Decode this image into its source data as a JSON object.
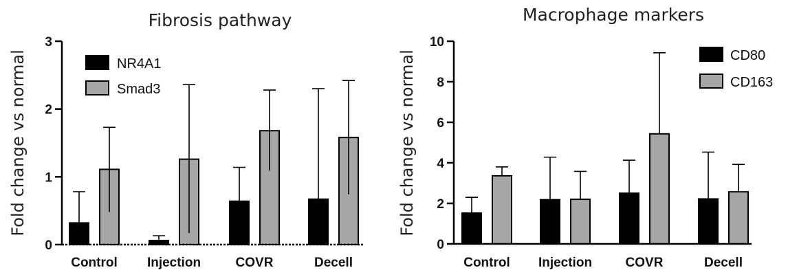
{
  "colors": {
    "series_1": "#000000",
    "series_2": "#a6a6a6",
    "axis": "#000000"
  },
  "chart_data": [
    {
      "type": "bar",
      "title": "Fibrosis pathway",
      "xlabel": "",
      "ylabel": "Fold change vs normal",
      "ylim": [
        0,
        3
      ],
      "yticks": [
        0,
        1,
        2,
        3
      ],
      "ytick_labels": [
        "0",
        "1",
        "2",
        "3"
      ],
      "categories": [
        "Control",
        "Injection",
        "COVR",
        "Decell"
      ],
      "series": [
        {
          "name": "NR4A1",
          "values": [
            0.32,
            0.06,
            0.64,
            0.67
          ],
          "err_upper": [
            0.78,
            0.13,
            1.14,
            2.3
          ],
          "err_lower": [
            0.32,
            0.06,
            0.64,
            0.67
          ]
        },
        {
          "name": "Smad3",
          "values": [
            1.11,
            1.26,
            1.68,
            1.58
          ],
          "err_upper": [
            1.73,
            2.36,
            2.28,
            2.42
          ],
          "err_lower": [
            0.48,
            0.17,
            1.09,
            0.74
          ]
        }
      ],
      "legend_position": "top-left",
      "grid": false
    },
    {
      "type": "bar",
      "title": "Macrophage markers",
      "xlabel": "",
      "ylabel": "Fold change vs normal",
      "ylim": [
        0,
        10
      ],
      "yticks": [
        0,
        2,
        4,
        6,
        8,
        10
      ],
      "ytick_labels": [
        "0",
        "2",
        "4",
        "6",
        "8",
        "10"
      ],
      "categories": [
        "Control",
        "Injection",
        "COVR",
        "Decell"
      ],
      "series": [
        {
          "name": "CD80",
          "values": [
            1.52,
            2.18,
            2.5,
            2.22
          ],
          "err_upper": [
            2.3,
            4.28,
            4.13,
            4.53
          ],
          "err_lower": [
            1.52,
            2.18,
            2.5,
            2.22
          ]
        },
        {
          "name": "CD163",
          "values": [
            3.36,
            2.2,
            5.43,
            2.57
          ],
          "err_upper": [
            3.8,
            3.58,
            9.43,
            3.92
          ],
          "err_lower": [
            3.36,
            2.2,
            5.43,
            2.57
          ]
        }
      ],
      "legend_position": "top-right",
      "grid": false
    }
  ]
}
